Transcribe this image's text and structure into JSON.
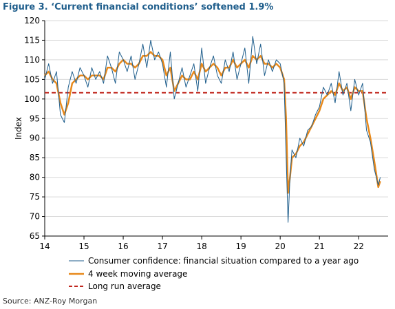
{
  "title": "Figure 3. ‘Current financial conditions’ softened 1.9%",
  "source": "Source: ANZ-Roy Morgan",
  "colors": {
    "raw": "#1f5e8c",
    "ma": "#e8891b",
    "lra": "#c0261d"
  },
  "chart_data": {
    "type": "line",
    "ylabel": "Index",
    "xlabel": "",
    "ylim": [
      65,
      120
    ],
    "xlim": [
      14,
      22.6
    ],
    "yticks": [
      65,
      70,
      75,
      80,
      85,
      90,
      95,
      100,
      105,
      110,
      115,
      120
    ],
    "xtick_labels": [
      "14",
      "15",
      "16",
      "17",
      "18",
      "19",
      "20",
      "21",
      "22"
    ],
    "legend_placement": "bottom",
    "long_run_average": 101.6,
    "series": [
      {
        "name": "Consumer confidence: financial situation compared to a year ago",
        "x": [
          14.0,
          14.1,
          14.2,
          14.3,
          14.4,
          14.5,
          14.6,
          14.7,
          14.8,
          14.9,
          15.0,
          15.1,
          15.2,
          15.3,
          15.4,
          15.5,
          15.6,
          15.7,
          15.8,
          15.9,
          16.0,
          16.1,
          16.2,
          16.3,
          16.4,
          16.5,
          16.6,
          16.7,
          16.8,
          16.9,
          17.0,
          17.1,
          17.2,
          17.3,
          17.4,
          17.5,
          17.6,
          17.7,
          17.8,
          17.9,
          18.0,
          18.1,
          18.2,
          18.3,
          18.4,
          18.5,
          18.6,
          18.7,
          18.8,
          18.9,
          19.0,
          19.1,
          19.2,
          19.3,
          19.4,
          19.5,
          19.6,
          19.7,
          19.8,
          19.9,
          20.0,
          20.1,
          20.15,
          20.2,
          20.25,
          20.3,
          20.4,
          20.5,
          20.6,
          20.7,
          20.8,
          20.9,
          21.0,
          21.1,
          21.2,
          21.3,
          21.4,
          21.5,
          21.6,
          21.7,
          21.8,
          21.9,
          22.0,
          22.1,
          22.2,
          22.3,
          22.4,
          22.5,
          22.55
        ],
        "values": [
          105,
          109,
          104,
          107,
          96,
          94,
          103,
          107,
          104,
          108,
          106,
          103,
          108,
          105,
          107,
          104,
          111,
          108,
          104,
          112,
          110,
          107,
          111,
          105,
          109,
          114,
          108,
          115,
          110,
          112,
          109,
          103,
          112,
          100,
          104,
          108,
          103,
          106,
          109,
          102,
          113,
          104,
          108,
          111,
          106,
          104,
          110,
          107,
          112,
          105,
          109,
          113,
          104,
          116,
          109,
          114,
          106,
          110,
          107,
          110,
          109,
          104,
          86,
          68.5,
          80,
          87,
          85,
          90,
          88,
          92,
          93,
          96,
          98,
          103,
          101,
          104,
          99,
          107,
          101,
          104,
          97,
          105,
          101,
          104,
          92,
          89,
          82,
          78,
          80
        ]
      },
      {
        "name": "4 week moving average",
        "x": [
          14.0,
          14.1,
          14.2,
          14.3,
          14.4,
          14.5,
          14.6,
          14.7,
          14.8,
          14.9,
          15.0,
          15.1,
          15.2,
          15.3,
          15.4,
          15.5,
          15.6,
          15.7,
          15.8,
          15.9,
          16.0,
          16.1,
          16.2,
          16.3,
          16.4,
          16.5,
          16.6,
          16.7,
          16.8,
          16.9,
          17.0,
          17.1,
          17.2,
          17.3,
          17.4,
          17.5,
          17.6,
          17.7,
          17.8,
          17.9,
          18.0,
          18.1,
          18.2,
          18.3,
          18.4,
          18.5,
          18.6,
          18.7,
          18.8,
          18.9,
          19.0,
          19.1,
          19.2,
          19.3,
          19.4,
          19.5,
          19.6,
          19.7,
          19.8,
          19.9,
          20.0,
          20.1,
          20.15,
          20.2,
          20.25,
          20.3,
          20.4,
          20.5,
          20.6,
          20.7,
          20.8,
          20.9,
          21.0,
          21.1,
          21.2,
          21.3,
          21.4,
          21.5,
          21.6,
          21.7,
          21.8,
          21.9,
          22.0,
          22.1,
          22.2,
          22.3,
          22.4,
          22.5,
          22.55
        ],
        "values": [
          106,
          107,
          105,
          104,
          99,
          96,
          99,
          104,
          105,
          106,
          106,
          105,
          106,
          106,
          106,
          105,
          108,
          108,
          107,
          109,
          110,
          109,
          109,
          108,
          109,
          111,
          111,
          112,
          111,
          111,
          110,
          106,
          108,
          102,
          104,
          106,
          105,
          105,
          107,
          105,
          109,
          107,
          108,
          109,
          108,
          106,
          108,
          108,
          110,
          108,
          109,
          110,
          108,
          111,
          110,
          111,
          109,
          109,
          108,
          109,
          108,
          105,
          95,
          76,
          80,
          85,
          86,
          88,
          89,
          91,
          93,
          95,
          97,
          100,
          101,
          102,
          101,
          104,
          102,
          103,
          100,
          103,
          102,
          102,
          95,
          90,
          84,
          77.5,
          79
        ]
      },
      {
        "name": "Long run average",
        "values": [
          101.6
        ]
      }
    ]
  }
}
